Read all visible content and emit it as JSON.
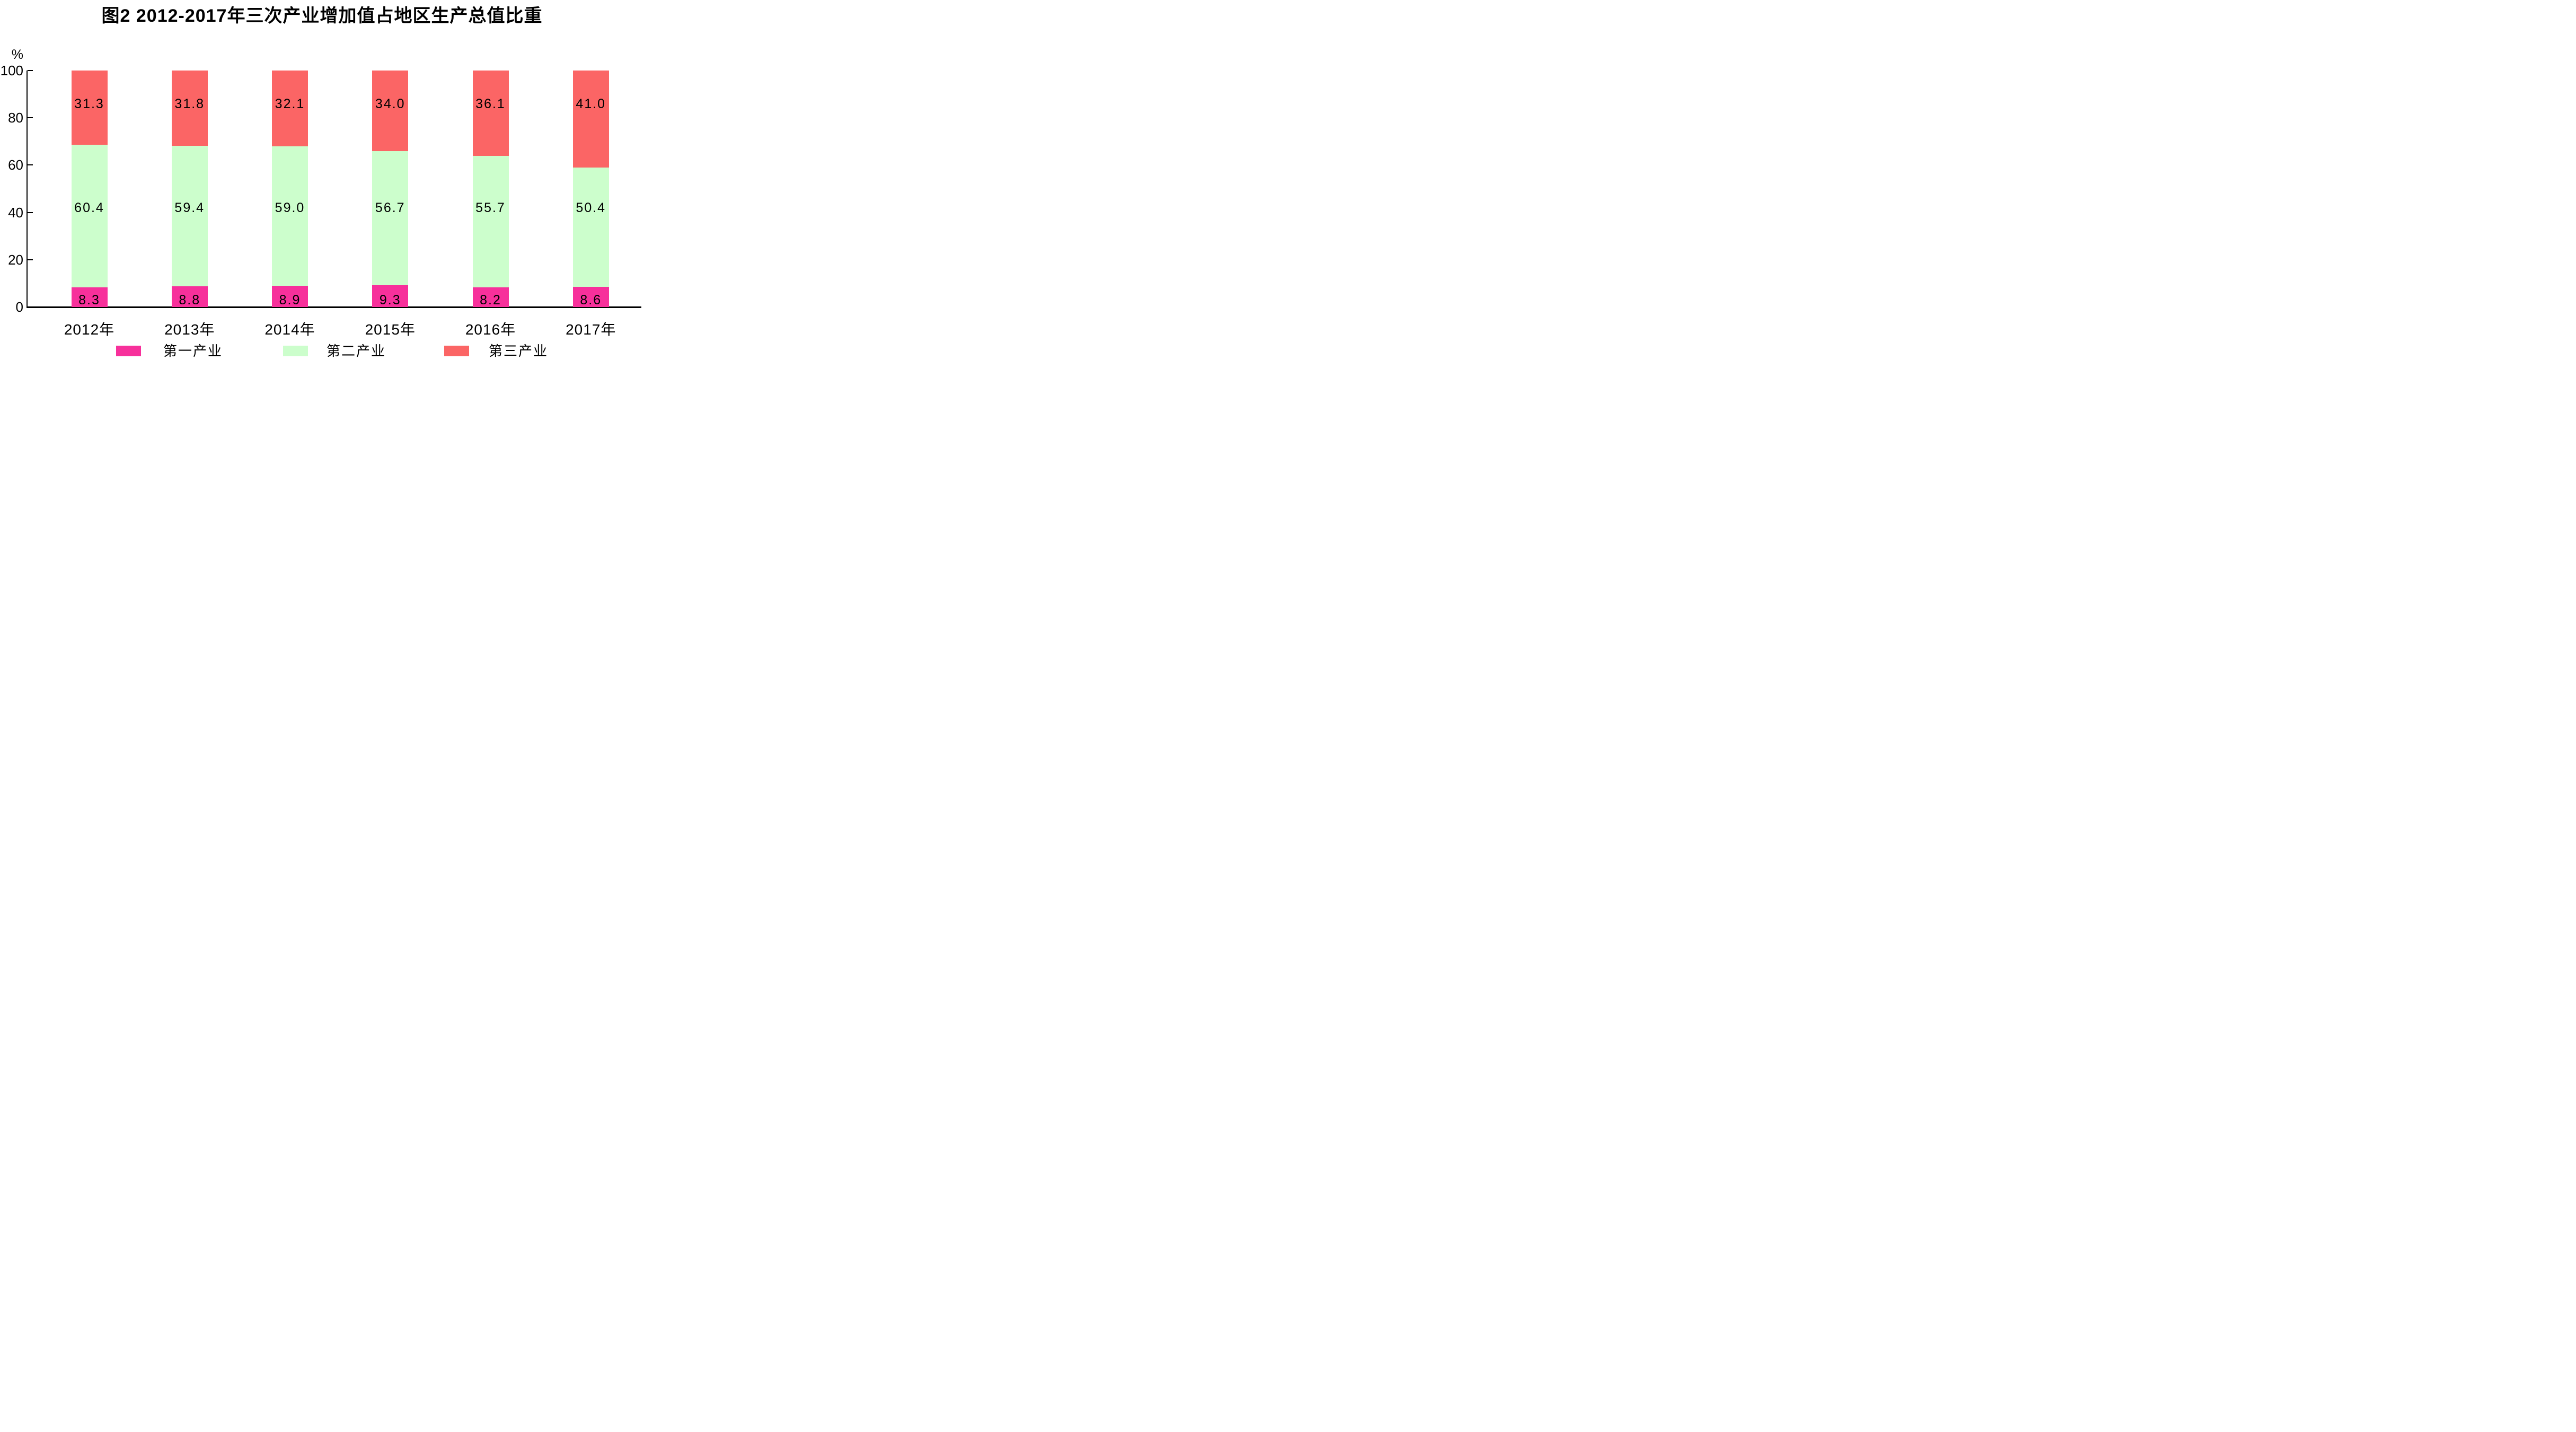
{
  "chart_data": {
    "type": "bar",
    "stacked": true,
    "percent_stacked": true,
    "title": "图2  2012-2017年三次产业增加值占地区生产总值比重",
    "unit_label": "%",
    "categories": [
      "2012年",
      "2013年",
      "2014年",
      "2015年",
      "2016年",
      "2017年"
    ],
    "series": [
      {
        "name": "第一产业",
        "color": "#F7309B",
        "values": [
          8.3,
          8.8,
          8.9,
          9.3,
          8.2,
          8.6
        ],
        "labels": [
          "8.3",
          "8.8",
          "8.9",
          "9.3",
          "8.2",
          "8.6"
        ]
      },
      {
        "name": "第二产业",
        "color": "#CCFECC",
        "values": [
          60.4,
          59.4,
          59.0,
          56.7,
          55.7,
          50.4
        ],
        "labels": [
          "60.4",
          "59.4",
          "59.0",
          "56.7",
          "55.7",
          "50.4"
        ]
      },
      {
        "name": "第三产业",
        "color": "#FB6565",
        "values": [
          31.3,
          31.8,
          32.1,
          34.0,
          36.1,
          41.0
        ],
        "labels": [
          "31.3",
          "31.8",
          "32.1",
          "34.0",
          "36.1",
          "41.0"
        ]
      }
    ],
    "y_axis": {
      "ticks": [
        0,
        20,
        40,
        60,
        80,
        100
      ],
      "range": [
        0,
        100
      ],
      "grid": false
    },
    "legend_position": "bottom",
    "axis_color": "#000000",
    "text_color": "#000000",
    "background_color": "#FFFFFF"
  }
}
